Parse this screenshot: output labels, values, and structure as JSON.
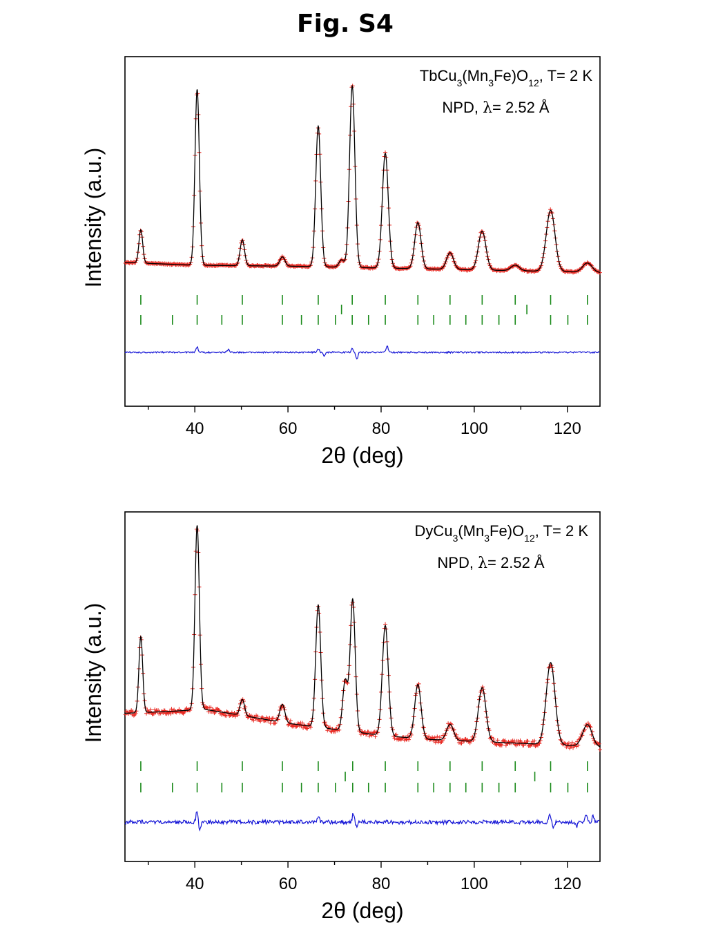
{
  "figure_title": "Fig. S4",
  "colors": {
    "observed": "#e8261f",
    "calculated": "#000000",
    "difference": "#1515d6",
    "bragg": "#1a8a1a"
  },
  "chart_data": [
    {
      "type": "scatter",
      "title": "",
      "xlabel": "2θ (deg)",
      "ylabel": "Intensity (a.u.)",
      "xlim": [
        25,
        127
      ],
      "xticks": [
        40,
        60,
        80,
        100,
        120
      ],
      "grid": false,
      "annotation": {
        "compound_prefix": "TbCu",
        "sub1": "3",
        "mid1": "(Mn",
        "sub2": "3",
        "mid2": "Fe)O",
        "sub3": "12",
        "temp": ", T= 2 K",
        "method": "NPD, ",
        "lambda": "λ",
        "wavelength": "= 2.52 Å"
      },
      "background": [
        [
          25,
          0.075
        ],
        [
          40,
          0.06
        ],
        [
          60,
          0.055
        ],
        [
          80,
          0.045
        ],
        [
          100,
          0.035
        ],
        [
          120,
          0.025
        ],
        [
          127,
          0.02
        ]
      ],
      "peaks": [
        {
          "x": 28.4,
          "h": 0.18,
          "w": 0.6
        },
        {
          "x": 40.5,
          "h": 0.95,
          "w": 0.7
        },
        {
          "x": 50.2,
          "h": 0.14,
          "w": 0.7
        },
        {
          "x": 58.8,
          "h": 0.05,
          "w": 0.8
        },
        {
          "x": 66.5,
          "h": 0.76,
          "w": 0.8
        },
        {
          "x": 71.5,
          "h": 0.04,
          "w": 0.8
        },
        {
          "x": 73.8,
          "h": 0.98,
          "w": 0.85
        },
        {
          "x": 80.9,
          "h": 0.62,
          "w": 0.95
        },
        {
          "x": 87.9,
          "h": 0.25,
          "w": 1.0
        },
        {
          "x": 94.8,
          "h": 0.09,
          "w": 1.1
        },
        {
          "x": 101.7,
          "h": 0.21,
          "w": 1.2
        },
        {
          "x": 108.8,
          "h": 0.03,
          "w": 1.3
        },
        {
          "x": 116.4,
          "h": 0.33,
          "w": 1.4
        },
        {
          "x": 124.3,
          "h": 0.05,
          "w": 1.5
        }
      ],
      "noise": 0.004,
      "bragg_row1": [
        28.4,
        40.5,
        50.2,
        58.8,
        66.5,
        73.8,
        80.9,
        87.9,
        94.8,
        101.7,
        108.8,
        116.4,
        124.3
      ],
      "bragg_row15": [
        71.5,
        111.3
      ],
      "bragg_row2": [
        28.4,
        35.2,
        40.5,
        45.8,
        50.2,
        58.8,
        62.9,
        66.5,
        70.2,
        73.8,
        77.3,
        80.9,
        87.9,
        91.3,
        94.8,
        98.2,
        101.7,
        105.3,
        108.8,
        116.4,
        120.1,
        124.3
      ],
      "difference_noise": 0.004,
      "difference_spikes": [
        [
          40.5,
          0.03
        ],
        [
          66.5,
          0.02
        ],
        [
          67.8,
          -0.02
        ],
        [
          73.8,
          0.02
        ],
        [
          74.8,
          -0.035
        ],
        [
          81.3,
          0.035
        ],
        [
          47.2,
          0.015
        ]
      ]
    },
    {
      "type": "scatter",
      "title": "",
      "xlabel": "2θ (deg)",
      "ylabel": "Intensity (a.u.)",
      "xlim": [
        25,
        127
      ],
      "xticks": [
        40,
        60,
        80,
        100,
        120
      ],
      "grid": false,
      "annotation": {
        "compound_prefix": "DyCu",
        "sub1": "3",
        "mid1": "(Mn",
        "sub2": "3",
        "mid2": "Fe)O",
        "sub3": "12",
        "temp": ", T= 2 K",
        "method": "NPD, ",
        "lambda": "λ",
        "wavelength": "= 2.52 Å"
      },
      "background": [
        [
          25,
          0.25
        ],
        [
          35,
          0.26
        ],
        [
          42,
          0.27
        ],
        [
          50,
          0.24
        ],
        [
          60,
          0.2
        ],
        [
          70,
          0.17
        ],
        [
          80,
          0.14
        ],
        [
          90,
          0.12
        ],
        [
          100,
          0.11
        ],
        [
          110,
          0.1
        ],
        [
          120,
          0.09
        ],
        [
          127,
          0.08
        ]
      ],
      "peaks": [
        {
          "x": 28.4,
          "h": 0.38,
          "w": 0.6
        },
        {
          "x": 40.5,
          "h": 0.92,
          "w": 0.7
        },
        {
          "x": 50.2,
          "h": 0.08,
          "w": 0.7
        },
        {
          "x": 58.8,
          "h": 0.09,
          "w": 0.8
        },
        {
          "x": 66.5,
          "h": 0.61,
          "w": 0.8
        },
        {
          "x": 72.3,
          "h": 0.25,
          "w": 0.8
        },
        {
          "x": 73.9,
          "h": 0.66,
          "w": 0.8
        },
        {
          "x": 80.9,
          "h": 0.55,
          "w": 0.95
        },
        {
          "x": 87.9,
          "h": 0.27,
          "w": 1.0
        },
        {
          "x": 94.8,
          "h": 0.08,
          "w": 1.1
        },
        {
          "x": 101.7,
          "h": 0.27,
          "w": 1.2
        },
        {
          "x": 116.4,
          "h": 0.41,
          "w": 1.4
        },
        {
          "x": 124.3,
          "h": 0.11,
          "w": 1.5
        }
      ],
      "noise": 0.015,
      "bragg_row1": [
        28.4,
        40.5,
        50.2,
        58.8,
        66.5,
        73.9,
        80.9,
        87.9,
        94.8,
        101.7,
        108.8,
        116.4,
        124.3
      ],
      "bragg_row15": [
        72.3,
        113.0
      ],
      "bragg_row2": [
        28.4,
        35.2,
        40.5,
        45.8,
        50.2,
        58.8,
        62.9,
        66.5,
        70.2,
        73.9,
        77.3,
        80.9,
        87.9,
        91.3,
        94.8,
        98.2,
        101.7,
        105.3,
        108.8,
        116.4,
        120.1,
        124.3
      ],
      "difference_noise": 0.01,
      "difference_spikes": [
        [
          40.5,
          0.06
        ],
        [
          41.0,
          -0.05
        ],
        [
          66.5,
          0.03
        ],
        [
          74.0,
          0.04
        ],
        [
          74.8,
          -0.03
        ],
        [
          116.2,
          0.03
        ],
        [
          117.0,
          -0.03
        ],
        [
          124.0,
          0.04
        ],
        [
          125.5,
          0.035
        ],
        [
          122.0,
          -0.02
        ]
      ]
    }
  ]
}
